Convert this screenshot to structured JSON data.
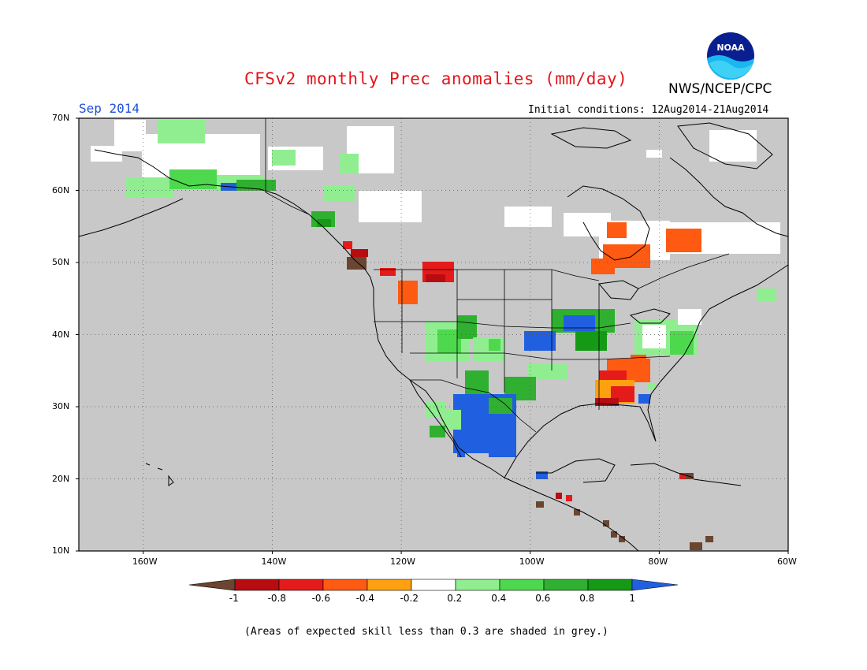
{
  "title": "CFSv2 monthly Prec anomalies (mm/day)",
  "agency": "NWS/NCEP/CPC",
  "logo_text": "NOAA",
  "valid_month": "Sep 2014",
  "initial_conditions": "Initial conditions: 12Aug2014-21Aug2014",
  "footnote": "(Areas of expected skill less than 0.3 are shaded in grey.)",
  "map": {
    "lat_labels": [
      "70N",
      "60N",
      "50N",
      "40N",
      "30N",
      "20N",
      "10N"
    ],
    "lon_labels": [
      "160W",
      "140W",
      "120W",
      "100W",
      "80W",
      "60W"
    ],
    "background_color": "#c8c8c8",
    "skill_mask_note": "grey"
  },
  "colorbar": {
    "labels": [
      "-1",
      "-0.8",
      "-0.6",
      "-0.4",
      "-0.2",
      "0.2",
      "0.4",
      "0.6",
      "0.8",
      "1"
    ],
    "colors": [
      "#6b4530",
      "#b80d10",
      "#e51b1b",
      "#ff5a12",
      "#ffa010",
      "#ffffff",
      "#90ee90",
      "#4ed84e",
      "#30b030",
      "#169a16",
      "#2060e0"
    ]
  }
}
